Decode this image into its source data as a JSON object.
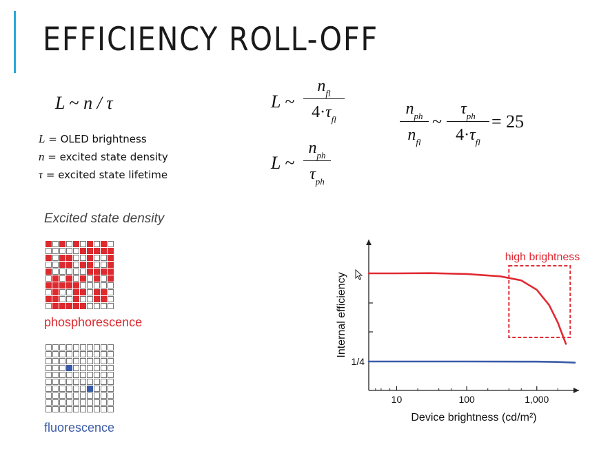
{
  "slide": {
    "title": "EFFICIENCY ROLL-OFF",
    "accent_color": "#2aa8d8"
  },
  "equations": {
    "eq1": {
      "lhs": "L",
      "rel": "~",
      "rhs": "n / τ"
    },
    "eq2": {
      "lhs": "L",
      "rel": "~",
      "numerator": "n",
      "numerator_sub": "fl",
      "denominator_prefix": "4·",
      "denominator": "τ",
      "denominator_sub": "fl"
    },
    "eq3": {
      "lhs": "L",
      "rel": "~",
      "numerator": "n",
      "numerator_sub": "ph",
      "denominator": "τ",
      "denominator_sub": "ph"
    },
    "eq4": {
      "frac1_num": "n",
      "frac1_num_sub": "ph",
      "frac1_den": "n",
      "frac1_den_sub": "fl",
      "rel": "~",
      "frac2_num": "τ",
      "frac2_num_sub": "ph",
      "frac2_den_prefix": "4·",
      "frac2_den": "τ",
      "frac2_den_sub": "fl",
      "result": "= 25"
    }
  },
  "definitions": [
    {
      "symbol": "L",
      "text": " = OLED brightness"
    },
    {
      "symbol": "n",
      "text": " = excited state density"
    },
    {
      "symbol": "τ",
      "text": " = excited state lifetime"
    }
  ],
  "density": {
    "heading": "Excited state density",
    "phosphorescence": {
      "label": "phosphorescence",
      "color": "#dd2a2f",
      "grid_size": 10,
      "filled_fraction": 0.5
    },
    "fluorescence": {
      "label": "fluorescence",
      "color": "#3b5ba8",
      "grid_size": 10,
      "filled_count": 2
    }
  },
  "chart_data": {
    "type": "line",
    "xlabel": "Device brightness (cd/m²)",
    "ylabel": "Internal efficiency",
    "xscale": "log",
    "xticks": [
      10,
      100,
      1000
    ],
    "xtick_labels": [
      "10",
      "100",
      "1,000"
    ],
    "ytick_labels": [
      "1/4"
    ],
    "series": [
      {
        "color": "#e02a33",
        "x": [
          4,
          10,
          30,
          100,
          300,
          600,
          1000,
          1500,
          2000,
          2600
        ],
        "y": [
          1.0,
          1.0,
          1.002,
          0.995,
          0.975,
          0.94,
          0.86,
          0.73,
          0.58,
          0.4
        ]
      },
      {
        "color": "#3b5ba8",
        "x": [
          4,
          10,
          100,
          1000,
          2000,
          3500
        ],
        "y": [
          0.25,
          0.25,
          0.25,
          0.249,
          0.246,
          0.24
        ]
      }
    ],
    "annotation": {
      "label": "high brightness",
      "color": "#e02a33",
      "x_range": [
        400,
        3000
      ]
    }
  }
}
